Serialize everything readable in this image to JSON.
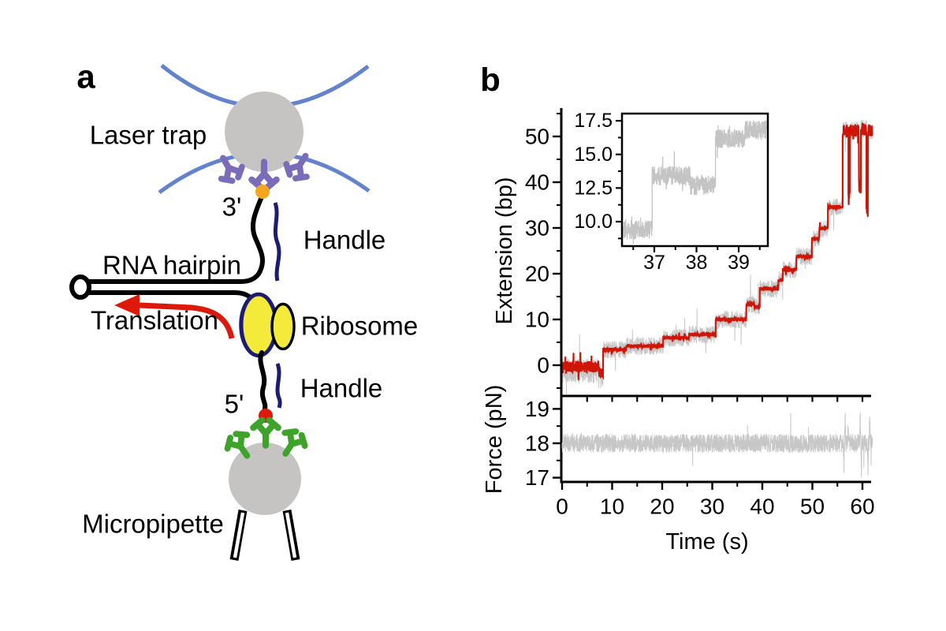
{
  "figure": {
    "panel_a": {
      "label": "a",
      "labels": {
        "laser_trap": "Laser trap",
        "three_prime": "3'",
        "handle_top": "Handle",
        "rna_hairpin": "RNA hairpin",
        "translation": "Translation",
        "ribosome": "Ribosome",
        "handle_bottom": "Handle",
        "five_prime": "5'",
        "micropipette": "Micropipette"
      },
      "colors": {
        "laser_blue": "#6383cd",
        "bead_gray": "#c6c4c2",
        "antibody_purple": "#7a6cb8",
        "biotin_orange": "#f2a71e",
        "handle_navy": "#1c1c72",
        "ribosome_yellow": "#f3ea39",
        "anchor_green": "#3da32a",
        "accent_red": "#dc190b"
      }
    },
    "panel_b": {
      "label": "b"
    }
  },
  "chart_data": [
    {
      "id": "extension",
      "type": "line",
      "ylabel": "Extension (bp)",
      "xlim": [
        0,
        62
      ],
      "ylim": [
        -6.5,
        57.5
      ],
      "grid": false,
      "legend": "none",
      "y_ticks": [
        {
          "v": 0,
          "label": "0"
        },
        {
          "v": 10,
          "label": "10"
        },
        {
          "v": 20,
          "label": "20"
        },
        {
          "v": 30,
          "label": "30"
        },
        {
          "v": 40,
          "label": "40"
        },
        {
          "v": 50,
          "label": "50"
        }
      ],
      "y_minor_ticks": [
        -5,
        5,
        15,
        25,
        35,
        45,
        55
      ],
      "x_separator_ticks": [
        5,
        10,
        15,
        20,
        25,
        30,
        35,
        40,
        45,
        50,
        55,
        60
      ],
      "start_until": 8.2,
      "wild_from": 56.05,
      "series": [
        {
          "name": "raw extension (gray)",
          "color": "#c7c7c7",
          "noise": 1.9,
          "start_noise": 2.7,
          "start_offset": -1.2,
          "wild_noise": 2.0,
          "seed": 12,
          "tail_prob": 0.012,
          "tail_mult": 2.2,
          "width": 1
        },
        {
          "name": "filtered extension (red)",
          "color": "#cf1506",
          "noise": 0.42,
          "start_noise": 1.25,
          "start_offset": -0.3,
          "wild_noise": 1.4,
          "seed": 5,
          "tail_prob": 0.02,
          "tail_mult": 1.8,
          "width": 2.2
        }
      ],
      "steps": [
        [
          0,
          7.3,
          0.0
        ],
        [
          7.3,
          8.2,
          -1.2
        ],
        [
          8.2,
          12.8,
          3.4
        ],
        [
          12.8,
          20.2,
          4.2
        ],
        [
          20.2,
          25.4,
          6.0
        ],
        [
          25.4,
          30.7,
          6.7
        ],
        [
          30.7,
          36.8,
          10.0
        ],
        [
          36.8,
          38.4,
          13.3
        ],
        [
          38.4,
          39.5,
          12.8
        ],
        [
          39.5,
          43.2,
          16.7
        ],
        [
          43.2,
          44.1,
          18.6
        ],
        [
          44.1,
          46.8,
          20.8
        ],
        [
          46.8,
          49.9,
          23.8
        ],
        [
          49.9,
          51.4,
          27.6
        ],
        [
          51.4,
          53.1,
          29.9
        ],
        [
          53.1,
          56.05,
          34.6
        ],
        [
          56.05,
          57.2,
          51.2
        ],
        [
          57.2,
          57.5,
          37.5
        ],
        [
          57.5,
          59.3,
          51.3
        ],
        [
          59.3,
          59.7,
          39.0
        ],
        [
          59.7,
          60.8,
          51.6
        ],
        [
          60.8,
          61.1,
          33.5
        ],
        [
          61.1,
          62.0,
          51.2
        ]
      ]
    },
    {
      "id": "inset",
      "type": "line",
      "xlim": [
        36.27,
        39.66
      ],
      "ylim": [
        8.3,
        18.0
      ],
      "grid": false,
      "x_ticks": [
        {
          "v": 37,
          "label": "37"
        },
        {
          "v": 38,
          "label": "38"
        },
        {
          "v": 39,
          "label": "39"
        }
      ],
      "x_minor_ticks": [
        36.5,
        37.5,
        38.5,
        39.5
      ],
      "y_ticks": [
        {
          "v": 10,
          "label": "10.0"
        },
        {
          "v": 12.5,
          "label": "12.5"
        },
        {
          "v": 15,
          "label": "15.0"
        },
        {
          "v": 17.5,
          "label": "17.5"
        }
      ],
      "y_minor_ticks": [
        8.75,
        11.25,
        13.75,
        16.25
      ],
      "series": [
        {
          "name": "raw extension zoom (gray)",
          "color": "#c4c4c4",
          "noise": 0.72,
          "seed": 77,
          "tail_prob": 0.02,
          "tail_mult": 1.6,
          "width": 1.3
        }
      ],
      "steps": [
        [
          36.27,
          36.95,
          9.4
        ],
        [
          36.95,
          37.85,
          13.4
        ],
        [
          37.85,
          38.45,
          12.7
        ],
        [
          38.45,
          39.15,
          16.2
        ],
        [
          39.15,
          39.66,
          16.8
        ]
      ]
    },
    {
      "id": "force",
      "type": "line",
      "ylabel": "Force (pN)",
      "xlabel": "Time (s)",
      "xlim": [
        0,
        62
      ],
      "ylim": [
        16.9,
        19.3
      ],
      "grid": false,
      "baseline": 18.0,
      "x_ticks": [
        {
          "v": 0,
          "label": "0"
        },
        {
          "v": 10,
          "label": "10"
        },
        {
          "v": 20,
          "label": "20"
        },
        {
          "v": 30,
          "label": "30"
        },
        {
          "v": 40,
          "label": "40"
        },
        {
          "v": 50,
          "label": "50"
        },
        {
          "v": 60,
          "label": "60"
        }
      ],
      "x_minor_ticks": [
        5,
        15,
        25,
        35,
        45,
        55
      ],
      "y_ticks": [
        {
          "v": 17,
          "label": "17"
        },
        {
          "v": 18,
          "label": "18"
        },
        {
          "v": 19,
          "label": "19"
        }
      ],
      "y_minor_ticks": [
        17.5,
        18.5
      ],
      "series": [
        {
          "name": "force raw (gray)",
          "color": "#c7c7c7",
          "noise": 0.27,
          "seed": 99,
          "tail_prob": 0.004,
          "tail_mult": 2.0,
          "width": 1
        }
      ],
      "spikes": [
        [
          56.3,
          -0.8
        ],
        [
          56.55,
          0.85
        ],
        [
          57.15,
          0.7
        ],
        [
          59.55,
          0.95
        ],
        [
          59.8,
          -0.85
        ],
        [
          61.1,
          -0.95
        ],
        [
          61.45,
          0.8
        ]
      ]
    }
  ]
}
